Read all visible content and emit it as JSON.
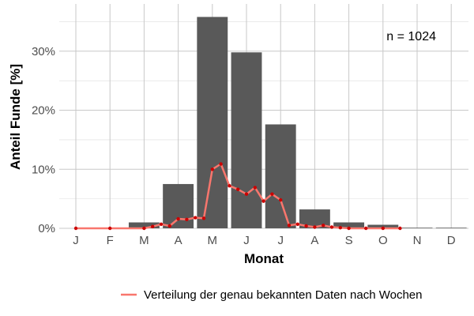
{
  "chart_data": {
    "type": "bar",
    "xlabel": "Monat",
    "ylabel": "Anteil Funde [%]",
    "categories": [
      "J",
      "F",
      "M",
      "A",
      "M",
      "J",
      "J",
      "A",
      "S",
      "O",
      "N",
      "D"
    ],
    "values": [
      0.0,
      0.0,
      1.0,
      7.5,
      35.8,
      29.8,
      17.6,
      3.2,
      1.0,
      0.6,
      0.1,
      0.1
    ],
    "y_ticks": [
      "0%",
      "10%",
      "20%",
      "30%"
    ],
    "ylim": [
      0,
      38
    ],
    "annotation": "n = 1024",
    "grid": true,
    "legend_position": "bottom",
    "bar_color": "#595959",
    "line_series": {
      "name": "Verteilung der genau bekannten Daten nach Wochen",
      "color": "#f8766d",
      "point_color": "#cc0000",
      "x_month": [
        1.0,
        2.0,
        3.0,
        3.25,
        3.5,
        3.75,
        4.0,
        4.25,
        4.5,
        4.75,
        5.0,
        5.25,
        5.5,
        5.75,
        6.0,
        6.25,
        6.5,
        6.75,
        7.0,
        7.25,
        7.5,
        7.75,
        8.0,
        8.25,
        8.5,
        8.75,
        9.0,
        9.5,
        10.0,
        10.5
      ],
      "y": [
        0.0,
        0.0,
        0.0,
        0.3,
        0.7,
        0.4,
        1.6,
        1.5,
        1.8,
        1.7,
        10.0,
        10.9,
        7.2,
        6.6,
        5.8,
        6.9,
        4.6,
        5.8,
        4.8,
        0.5,
        0.7,
        0.4,
        0.2,
        0.5,
        0.2,
        0.1,
        0.0,
        0.0,
        0.0,
        0.0
      ]
    }
  }
}
